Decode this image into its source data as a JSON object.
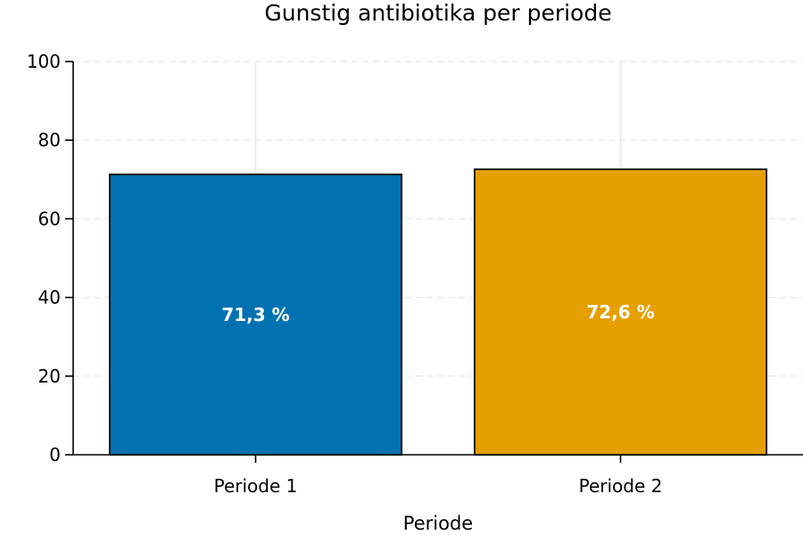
{
  "chart_data": {
    "type": "bar",
    "title": "Gunstig antibiotika per periode",
    "xlabel": "Periode",
    "ylabel": "",
    "categories": [
      "Periode 1",
      "Periode 2"
    ],
    "values": [
      71.3,
      72.6
    ],
    "data_labels": [
      "71,3 %",
      "72,6 %"
    ],
    "colors": [
      "#0072b2",
      "#e69f00"
    ],
    "ylim": [
      0,
      100
    ],
    "yticks": [
      0,
      20,
      40,
      60,
      80,
      100
    ],
    "grid": true,
    "legend": "none"
  }
}
